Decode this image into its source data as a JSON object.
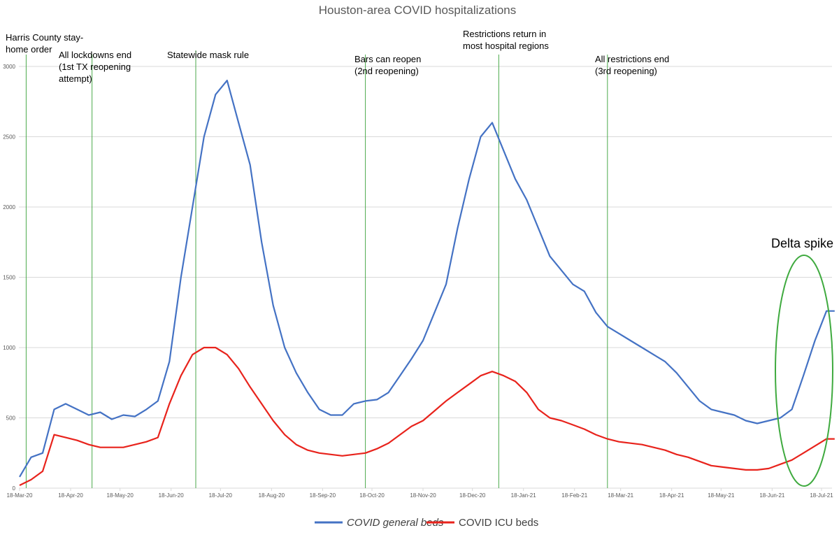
{
  "chart_data": {
    "type": "line",
    "title": "Houston-area COVID hospitalizations",
    "ylim": [
      0,
      3000
    ],
    "y_ticks": [
      0,
      500,
      1000,
      1500,
      2000,
      2500,
      3000
    ],
    "x_ticks": [
      "18-Mar-20",
      "18-Apr-20",
      "18-May-20",
      "18-Jun-20",
      "18-Jul-20",
      "18-Aug-20",
      "18-Sep-20",
      "18-Oct-20",
      "18-Nov-20",
      "18-Dec-20",
      "18-Jan-21",
      "18-Feb-21",
      "18-Mar-21",
      "18-Apr-21",
      "18-May-21",
      "18-Jun-21",
      "18-Jul-21"
    ],
    "grid": true,
    "legend_position": "bottom",
    "series": [
      {
        "name": "COVID general beds",
        "color": "#4472c4",
        "x": [
          "18-Mar-20",
          "25-Mar-20",
          "1-Apr-20",
          "8-Apr-20",
          "15-Apr-20",
          "22-Apr-20",
          "29-Apr-20",
          "6-May-20",
          "13-May-20",
          "20-May-20",
          "27-May-20",
          "3-Jun-20",
          "10-Jun-20",
          "17-Jun-20",
          "24-Jun-20",
          "1-Jul-20",
          "8-Jul-20",
          "15-Jul-20",
          "22-Jul-20",
          "29-Jul-20",
          "5-Aug-20",
          "12-Aug-20",
          "19-Aug-20",
          "26-Aug-20",
          "2-Sep-20",
          "9-Sep-20",
          "16-Sep-20",
          "23-Sep-20",
          "30-Sep-20",
          "7-Oct-20",
          "14-Oct-20",
          "21-Oct-20",
          "28-Oct-20",
          "4-Nov-20",
          "11-Nov-20",
          "18-Nov-20",
          "25-Nov-20",
          "2-Dec-20",
          "9-Dec-20",
          "16-Dec-20",
          "23-Dec-20",
          "30-Dec-20",
          "6-Jan-21",
          "13-Jan-21",
          "20-Jan-21",
          "27-Jan-21",
          "3-Feb-21",
          "10-Feb-21",
          "17-Feb-21",
          "24-Feb-21",
          "3-Mar-21",
          "10-Mar-21",
          "17-Mar-21",
          "24-Mar-21",
          "31-Mar-21",
          "7-Apr-21",
          "14-Apr-21",
          "21-Apr-21",
          "28-Apr-21",
          "5-May-21",
          "12-May-21",
          "19-May-21",
          "26-May-21",
          "2-Jun-21",
          "9-Jun-21",
          "16-Jun-21",
          "23-Jun-21",
          "30-Jun-21",
          "7-Jul-21",
          "14-Jul-21",
          "21-Jul-21",
          "26-Jul-21"
        ],
        "values": [
          80,
          220,
          250,
          560,
          600,
          560,
          520,
          540,
          490,
          520,
          510,
          560,
          620,
          900,
          1500,
          2000,
          2500,
          2800,
          2900,
          2600,
          2300,
          1750,
          1300,
          1000,
          820,
          680,
          560,
          520,
          520,
          600,
          620,
          630,
          680,
          800,
          920,
          1050,
          1250,
          1450,
          1850,
          2200,
          2500,
          2600,
          2400,
          2200,
          2050,
          1850,
          1650,
          1550,
          1450,
          1400,
          1250,
          1150,
          1100,
          1050,
          1000,
          950,
          900,
          820,
          720,
          620,
          560,
          540,
          520,
          480,
          460,
          480,
          500,
          560,
          800,
          1050,
          1260,
          1260
        ]
      },
      {
        "name": "COVID ICU beds",
        "color": "#e8231c",
        "x": [
          "18-Mar-20",
          "25-Mar-20",
          "1-Apr-20",
          "8-Apr-20",
          "15-Apr-20",
          "22-Apr-20",
          "29-Apr-20",
          "6-May-20",
          "13-May-20",
          "20-May-20",
          "27-May-20",
          "3-Jun-20",
          "10-Jun-20",
          "17-Jun-20",
          "24-Jun-20",
          "1-Jul-20",
          "8-Jul-20",
          "15-Jul-20",
          "22-Jul-20",
          "29-Jul-20",
          "5-Aug-20",
          "12-Aug-20",
          "19-Aug-20",
          "26-Aug-20",
          "2-Sep-20",
          "9-Sep-20",
          "16-Sep-20",
          "23-Sep-20",
          "30-Sep-20",
          "7-Oct-20",
          "14-Oct-20",
          "21-Oct-20",
          "28-Oct-20",
          "4-Nov-20",
          "11-Nov-20",
          "18-Nov-20",
          "25-Nov-20",
          "2-Dec-20",
          "9-Dec-20",
          "16-Dec-20",
          "23-Dec-20",
          "30-Dec-20",
          "6-Jan-21",
          "13-Jan-21",
          "20-Jan-21",
          "27-Jan-21",
          "3-Feb-21",
          "10-Feb-21",
          "17-Feb-21",
          "24-Feb-21",
          "3-Mar-21",
          "10-Mar-21",
          "17-Mar-21",
          "24-Mar-21",
          "31-Mar-21",
          "7-Apr-21",
          "14-Apr-21",
          "21-Apr-21",
          "28-Apr-21",
          "5-May-21",
          "12-May-21",
          "19-May-21",
          "26-May-21",
          "2-Jun-21",
          "9-Jun-21",
          "16-Jun-21",
          "23-Jun-21",
          "30-Jun-21",
          "7-Jul-21",
          "14-Jul-21",
          "21-Jul-21",
          "26-Jul-21"
        ],
        "values": [
          20,
          60,
          120,
          380,
          360,
          340,
          310,
          290,
          290,
          290,
          310,
          330,
          360,
          600,
          800,
          950,
          1000,
          1000,
          950,
          850,
          720,
          600,
          480,
          380,
          310,
          270,
          250,
          240,
          230,
          240,
          250,
          280,
          320,
          380,
          440,
          480,
          550,
          620,
          680,
          740,
          800,
          830,
          800,
          760,
          680,
          560,
          500,
          480,
          450,
          420,
          380,
          350,
          330,
          320,
          310,
          290,
          270,
          240,
          220,
          190,
          160,
          150,
          140,
          130,
          130,
          140,
          170,
          200,
          250,
          300,
          350,
          350
        ]
      }
    ],
    "annotations": [
      {
        "date": "22-Mar-20",
        "lines": [
          "Harris County stay-",
          "home order"
        ]
      },
      {
        "date": "1-May-20",
        "lines": [
          "All lockdowns end",
          "(1st TX reopening",
          "attempt)"
        ]
      },
      {
        "date": "3-Jul-20",
        "lines": [
          "Statewide mask rule"
        ]
      },
      {
        "date": "14-Oct-20",
        "lines": [
          "Bars can reopen",
          "(2nd reopening)"
        ]
      },
      {
        "date": "3-Jan-21",
        "lines": [
          "Restrictions return in",
          "most hospital regions"
        ]
      },
      {
        "date": "10-Mar-21",
        "lines": [
          "All restrictions end",
          "(3rd reopening)"
        ]
      }
    ],
    "callout": {
      "label": "Delta spike",
      "color": "#3faa3f"
    }
  }
}
